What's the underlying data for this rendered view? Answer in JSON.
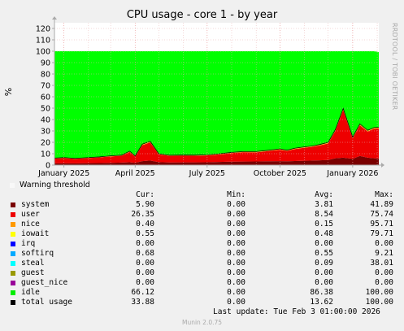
{
  "chart_data": {
    "type": "area",
    "title": "CPU usage - core 1 - by year",
    "ylabel": "%",
    "ylim": [
      0,
      125
    ],
    "ytick_values": [
      0,
      10,
      20,
      30,
      40,
      50,
      60,
      70,
      80,
      90,
      100,
      110,
      120
    ],
    "ytick_labels": [
      "0",
      "10",
      "20",
      "30",
      "40",
      "50",
      "60",
      "70",
      "80",
      "90",
      "100",
      "110",
      "120"
    ],
    "xlim": [
      "2024-12-20",
      "2026-02-03"
    ],
    "xtick_values": [
      "2025-01-01",
      "2025-04-01",
      "2025-07-01",
      "2025-10-01",
      "2026-01-01"
    ],
    "xtick_labels": [
      "January 2025",
      "April 2025",
      "July 2025",
      "October 2025",
      "January 2026"
    ],
    "minor_x_grid": true,
    "stacked": true,
    "x": [
      "2024-12-20",
      "2025-01-01",
      "2025-01-15",
      "2025-02-01",
      "2025-02-15",
      "2025-03-01",
      "2025-03-15",
      "2025-03-25",
      "2025-04-01",
      "2025-04-10",
      "2025-04-20",
      "2025-05-01",
      "2025-05-15",
      "2025-06-01",
      "2025-06-15",
      "2025-07-01",
      "2025-07-15",
      "2025-08-01",
      "2025-08-15",
      "2025-09-01",
      "2025-09-15",
      "2025-10-01",
      "2025-10-10",
      "2025-10-20",
      "2025-11-01",
      "2025-11-10",
      "2025-11-20",
      "2025-12-01",
      "2025-12-10",
      "2025-12-20",
      "2026-01-01",
      "2026-01-10",
      "2026-01-20",
      "2026-01-28",
      "2026-02-03"
    ],
    "series": [
      {
        "name": "system",
        "color": "#7a0000",
        "values": [
          1.5,
          1.6,
          1.5,
          1.7,
          1.8,
          2.0,
          2.2,
          2.5,
          2.0,
          3.5,
          4.0,
          2.6,
          2.3,
          2.4,
          2.4,
          2.5,
          2.8,
          3.0,
          3.1,
          3.2,
          3.4,
          3.5,
          3.4,
          3.6,
          3.8,
          4.0,
          4.2,
          4.5,
          6.0,
          6.5,
          5.5,
          8.0,
          6.5,
          6.0,
          5.9
        ]
      },
      {
        "name": "user",
        "color": "#ee0000",
        "values": [
          4.2,
          4.6,
          4.0,
          4.5,
          5.0,
          5.6,
          6.0,
          9.0,
          5.5,
          14.0,
          16.0,
          6.8,
          5.8,
          5.9,
          5.8,
          6.0,
          6.5,
          7.5,
          8.2,
          8.0,
          8.8,
          10.0,
          9.0,
          10.5,
          11.5,
          12.0,
          13.0,
          14.5,
          24.0,
          42.0,
          18.0,
          27.0,
          23.0,
          26.0,
          26.35
        ]
      },
      {
        "name": "nice",
        "color": "#ff9900",
        "values": [
          0.1,
          0.1,
          0.1,
          0.1,
          0.1,
          0.1,
          0.1,
          0.2,
          0.1,
          0.2,
          0.2,
          0.1,
          0.1,
          0.1,
          0.1,
          0.1,
          0.1,
          0.1,
          0.1,
          0.2,
          0.2,
          0.2,
          0.2,
          0.2,
          0.2,
          0.2,
          0.2,
          0.3,
          0.4,
          0.5,
          0.4,
          0.5,
          0.4,
          0.4,
          0.4
        ]
      },
      {
        "name": "iowait",
        "color": "#ffff00",
        "values": [
          0.3,
          0.3,
          0.3,
          0.3,
          0.3,
          0.4,
          0.4,
          0.5,
          0.4,
          0.6,
          0.6,
          0.4,
          0.4,
          0.4,
          0.4,
          0.4,
          0.4,
          0.5,
          0.5,
          0.5,
          0.5,
          0.5,
          0.5,
          0.5,
          0.5,
          0.5,
          0.6,
          0.6,
          0.6,
          0.7,
          0.6,
          0.6,
          0.6,
          0.55,
          0.55
        ]
      },
      {
        "name": "idle",
        "color": "#00ff00",
        "values": [
          93.9,
          93.4,
          94.1,
          93.4,
          92.8,
          91.9,
          91.3,
          87.8,
          92.0,
          81.7,
          79.2,
          90.1,
          91.4,
          91.2,
          91.3,
          91.0,
          90.2,
          88.9,
          88.1,
          88.1,
          87.1,
          85.8,
          86.9,
          85.2,
          84.0,
          83.3,
          82.0,
          80.1,
          69.0,
          50.3,
          75.5,
          63.9,
          69.5,
          67.05,
          66.12
        ]
      }
    ],
    "legend": {
      "warning_label": "Warning threshold",
      "headers": [
        "Cur:",
        "Min:",
        "Avg:",
        "Max:"
      ],
      "rows": [
        {
          "name": "system",
          "color": "#7a0000",
          "cur": "5.90",
          "min": "0.00",
          "avg": "3.81",
          "max": "41.89"
        },
        {
          "name": "user",
          "color": "#ee0000",
          "cur": "26.35",
          "min": "0.00",
          "avg": "8.54",
          "max": "75.74"
        },
        {
          "name": "nice",
          "color": "#ff9900",
          "cur": "0.40",
          "min": "0.00",
          "avg": "0.15",
          "max": "95.71"
        },
        {
          "name": "iowait",
          "color": "#ffff00",
          "cur": "0.55",
          "min": "0.00",
          "avg": "0.48",
          "max": "79.71"
        },
        {
          "name": "irq",
          "color": "#0000ff",
          "cur": "0.00",
          "min": "0.00",
          "avg": "0.00",
          "max": "0.00"
        },
        {
          "name": "softirq",
          "color": "#00aaff",
          "cur": "0.68",
          "min": "0.00",
          "avg": "0.55",
          "max": "9.21"
        },
        {
          "name": "steal",
          "color": "#00ffff",
          "cur": "0.00",
          "min": "0.00",
          "avg": "0.09",
          "max": "38.01"
        },
        {
          "name": "guest",
          "color": "#999900",
          "cur": "0.00",
          "min": "0.00",
          "avg": "0.00",
          "max": "0.00"
        },
        {
          "name": "guest_nice",
          "color": "#990099",
          "cur": "0.00",
          "min": "0.00",
          "avg": "0.00",
          "max": "0.00"
        },
        {
          "name": "idle",
          "color": "#00ee00",
          "cur": "66.12",
          "min": "0.00",
          "avg": "86.38",
          "max": "100.00"
        },
        {
          "name": "total usage",
          "color": "#000000",
          "cur": "33.88",
          "min": "0.00",
          "avg": "13.62",
          "max": "100.00"
        }
      ]
    }
  },
  "side_credit": "RRDTOOL / TOBI OETIKER",
  "last_update": "Last update: Tue Feb  3 01:00:00 2026",
  "munin_version": "Munin 2.0.75"
}
